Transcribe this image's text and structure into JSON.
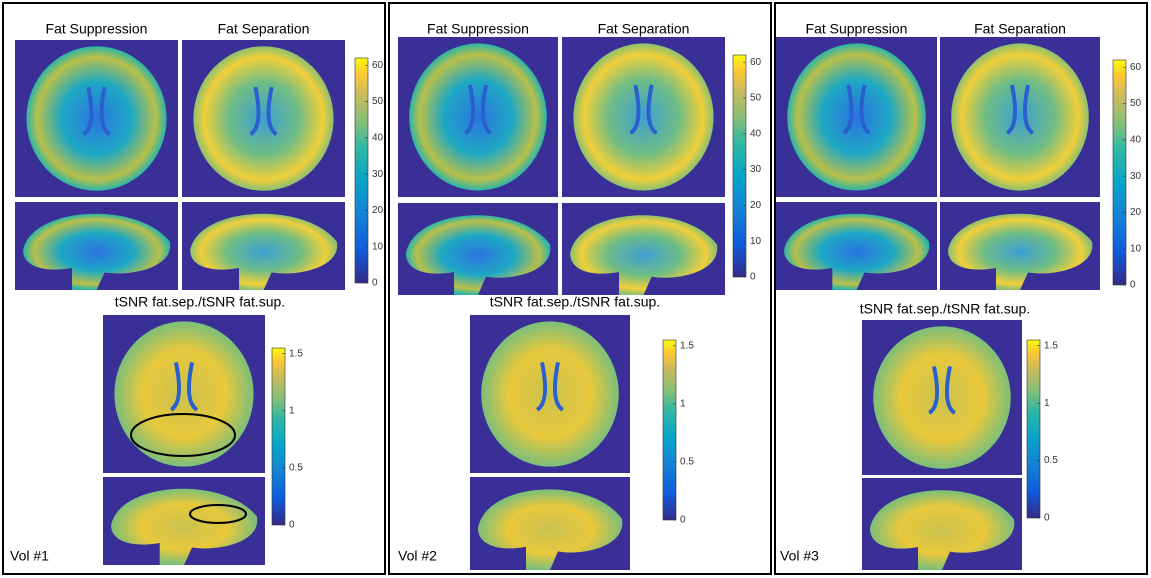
{
  "panels": [
    {
      "label": "Vol #1",
      "columns": [
        "Fat Suppression",
        "Fat Separation"
      ],
      "ratio_title": "tSNR fat.sep./tSNR fat.sup."
    },
    {
      "label": "Vol #2",
      "columns": [
        "Fat Suppression",
        "Fat Separation"
      ],
      "ratio_title": "tSNR fat.sep./tSNR fat.sup."
    },
    {
      "label": "Vol #3",
      "columns": [
        "Fat Suppression",
        "Fat Separation"
      ],
      "ratio_title": "tSNR fat.sep./tSNR fat.sup."
    }
  ],
  "tsnr_colorbar": {
    "range": [
      0,
      62
    ],
    "ticks": [
      0,
      10,
      20,
      30,
      40,
      50,
      60
    ]
  },
  "ratio_colorbar": {
    "range": [
      0,
      1.55
    ],
    "ticks": [
      0,
      0.5,
      1,
      1.5
    ]
  }
}
